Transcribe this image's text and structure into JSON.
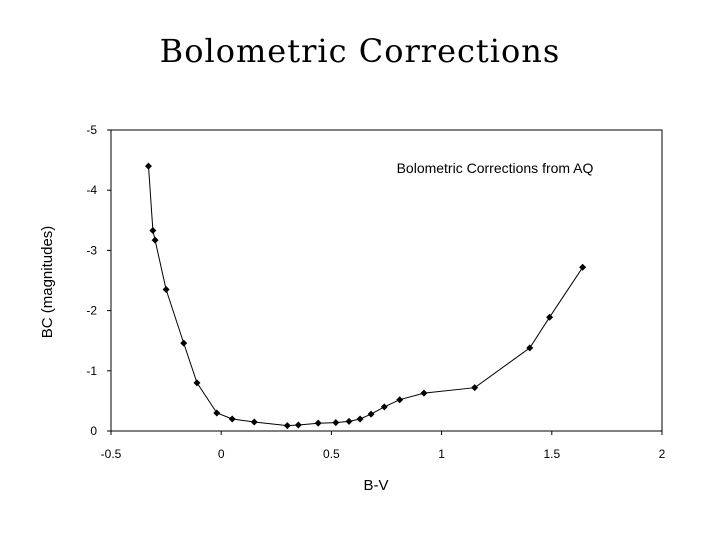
{
  "page": {
    "title": "Bolometric Corrections"
  },
  "chart_data": {
    "type": "line",
    "title": "Bolometric Corrections from AQ",
    "xlabel": "B-V",
    "ylabel": "BC (magnitudes)",
    "xlim": [
      -0.5,
      2
    ],
    "ylim": [
      0,
      -5
    ],
    "y_inverted": true,
    "x_ticks": [
      "-0.5",
      "0",
      "0.5",
      "1",
      "1.5",
      "2"
    ],
    "y_ticks": [
      "-5",
      "-4",
      "-3",
      "-2",
      "-1",
      "0"
    ],
    "grid": false,
    "marker": "diamond",
    "color": "#000000",
    "x": [
      -0.33,
      -0.31,
      -0.3,
      -0.25,
      -0.17,
      -0.11,
      -0.02,
      0.05,
      0.15,
      0.3,
      0.35,
      0.44,
      0.52,
      0.58,
      0.63,
      0.68,
      0.74,
      0.81,
      0.92,
      1.15,
      1.4,
      1.49,
      1.64
    ],
    "y": [
      -4.4,
      -3.33,
      -3.17,
      -2.35,
      -1.46,
      -0.8,
      -0.3,
      -0.2,
      -0.15,
      -0.09,
      -0.1,
      -0.13,
      -0.14,
      -0.16,
      -0.2,
      -0.28,
      -0.4,
      -0.52,
      -0.63,
      -0.72,
      -1.38,
      -1.89,
      -2.72
    ]
  }
}
